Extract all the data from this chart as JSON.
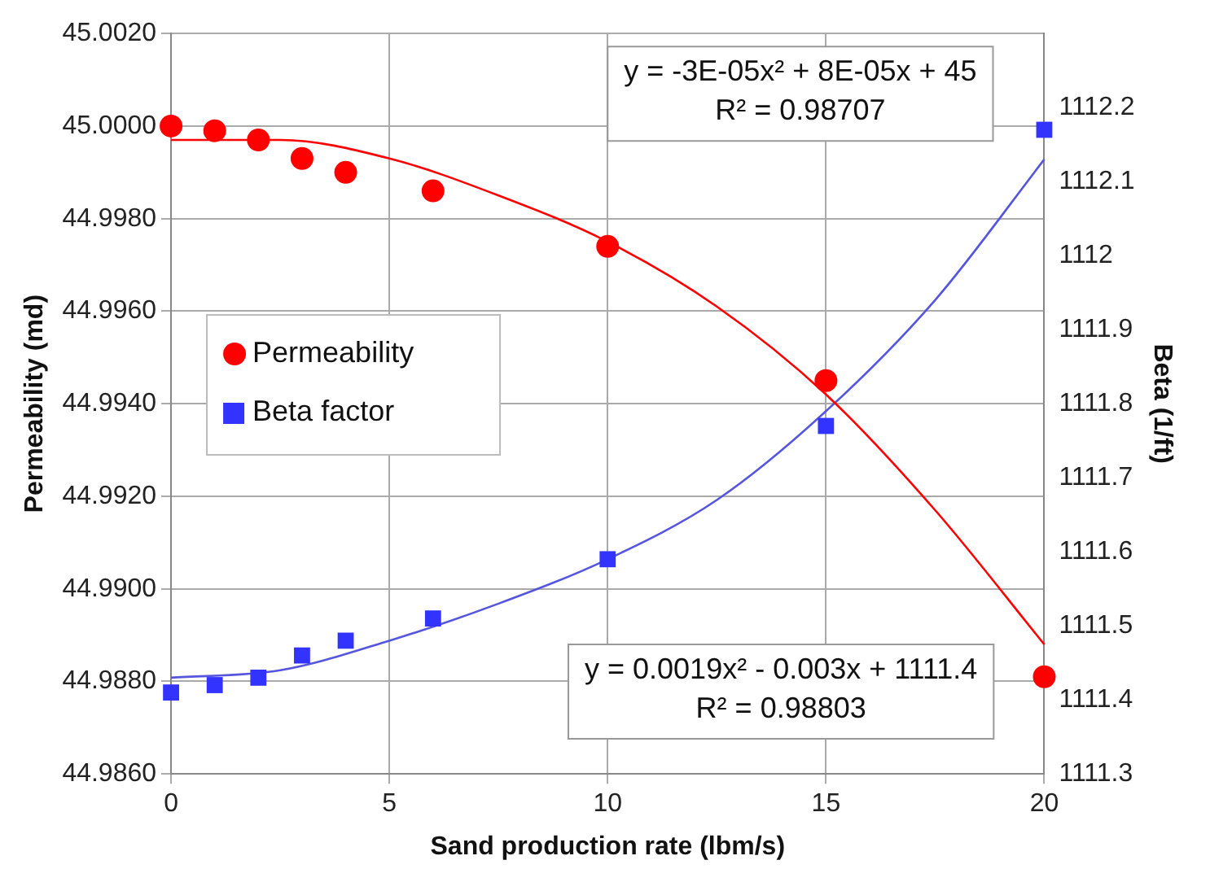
{
  "chart_data": {
    "type": "scatter",
    "xlabel": "Sand production rate (lbm/s)",
    "ylabel": "Permeability (md)",
    "y2label": "Beta (1/ft)",
    "series": [
      {
        "name": "Permeability",
        "marker": "circle",
        "color": "#ff0000",
        "x": [
          0,
          1,
          2,
          3,
          4,
          6,
          10,
          15,
          20
        ],
        "values": [
          45.0,
          44.9999,
          44.9997,
          44.9993,
          44.999,
          44.9986,
          44.9974,
          44.9945,
          44.9881
        ]
      },
      {
        "name": "Beta factor",
        "marker": "square",
        "axis": "y2",
        "color": "#3333ff",
        "x": [
          0,
          1,
          2,
          3,
          4,
          6,
          10,
          15,
          20
        ],
        "values": [
          1111.41,
          1111.42,
          1111.43,
          1111.46,
          1111.48,
          1111.51,
          1111.59,
          1111.77,
          1112.17
        ]
      },
      {
        "type": "line",
        "marker": "none",
        "line_style": "solid",
        "color": "#ff0000",
        "x": [
          0,
          2.5,
          5,
          7.5,
          10,
          12.5,
          15,
          17.5,
          20
        ],
        "values": [
          44.9997,
          44.9997,
          44.9993,
          44.9985,
          44.9975,
          44.9961,
          44.9942,
          44.9917,
          44.9888
        ]
      },
      {
        "type": "line",
        "marker": "none",
        "line_style": "solid",
        "axis": "y2",
        "color": "#5555dd",
        "x": [
          0,
          2.5,
          5,
          7.5,
          10,
          12.5,
          15,
          17.5,
          20
        ],
        "values": [
          1111.43,
          1111.44,
          1111.48,
          1111.53,
          1111.59,
          1111.67,
          1111.79,
          1111.94,
          1112.13
        ]
      }
    ],
    "xlim": [
      0,
      20
    ],
    "xticks": [
      0,
      5,
      10,
      15,
      20
    ],
    "ylim": [
      44.986,
      45.002
    ],
    "yticks": [
      {
        "value": 44.986,
        "label": "44.9860"
      },
      {
        "value": 44.988,
        "label": "44.9880"
      },
      {
        "value": 44.99,
        "label": "44.9900"
      },
      {
        "value": 44.992,
        "label": "44.9920"
      },
      {
        "value": 44.994,
        "label": "44.9940"
      },
      {
        "value": 44.996,
        "label": "44.9960"
      },
      {
        "value": 44.998,
        "label": "44.9980"
      },
      {
        "value": 45.0,
        "label": "45.0000"
      },
      {
        "value": 45.002,
        "label": "45.0020"
      }
    ],
    "y2lim": [
      1111.3,
      1112.3
    ],
    "y2ticks": [
      1111.3,
      1111.4,
      1111.5,
      1111.6,
      1111.7,
      1111.8,
      1111.9,
      1112,
      1112.1,
      1112.2
    ],
    "annotations": [
      "y = -3E-05x² + 8E-05x + 45",
      "R² = 0.98707",
      "y = 0.0019x² - 0.003x + 1111.4",
      "R² = 0.98803"
    ],
    "grid": true,
    "legend": "left"
  }
}
